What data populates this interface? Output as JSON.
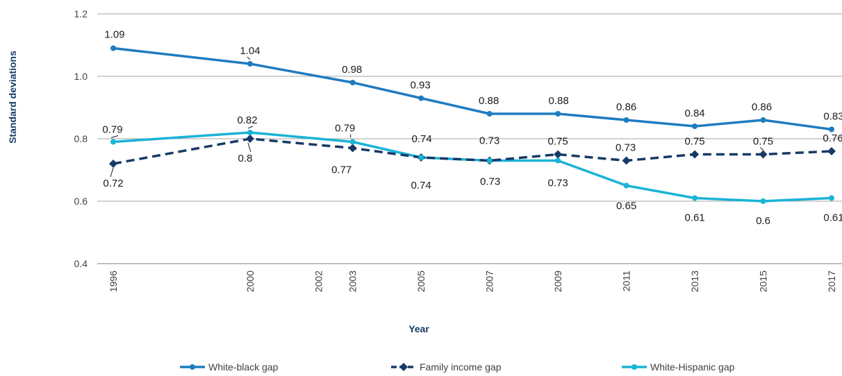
{
  "chart_data": {
    "type": "line",
    "xlabel": "Year",
    "ylabel": "Standard deviations",
    "ylim": [
      0.4,
      1.2
    ],
    "yticks": [
      "0.4",
      "0.6",
      "0.8",
      "1.0",
      "1.2"
    ],
    "grid": true,
    "legend_position": "bottom",
    "x": [
      "1996",
      "2000",
      "2002",
      "2003",
      "2005",
      "2007",
      "2009",
      "2011",
      "2013",
      "2015",
      "2017"
    ],
    "series": [
      {
        "name": "White-black gap",
        "color": "#1f7bc0",
        "marker": "circle",
        "dash": "solid",
        "points": [
          {
            "x": "1996",
            "y": 1.09,
            "label": "1.09"
          },
          {
            "x": "2000",
            "y": 1.04,
            "label": "1.04"
          },
          {
            "x": "2003",
            "y": 0.98,
            "label": "0.98"
          },
          {
            "x": "2005",
            "y": 0.93,
            "label": "0.93"
          },
          {
            "x": "2007",
            "y": 0.88,
            "label": "0.88"
          },
          {
            "x": "2009",
            "y": 0.88,
            "label": "0.88"
          },
          {
            "x": "2011",
            "y": 0.86,
            "label": "0.86"
          },
          {
            "x": "2013",
            "y": 0.84,
            "label": "0.84"
          },
          {
            "x": "2015",
            "y": 0.86,
            "label": "0.86"
          },
          {
            "x": "2017",
            "y": 0.83,
            "label": "0.83"
          }
        ]
      },
      {
        "name": "Family income gap",
        "color": "#173a66",
        "marker": "diamond",
        "dash": "dashed",
        "points": [
          {
            "x": "1996",
            "y": 0.72,
            "label": "0.72"
          },
          {
            "x": "2000",
            "y": 0.8,
            "label": "0.8"
          },
          {
            "x": "2003",
            "y": 0.77,
            "label": "0.77"
          },
          {
            "x": "2005",
            "y": 0.74,
            "label": "0.74"
          },
          {
            "x": "2007",
            "y": 0.73,
            "label": "0.73"
          },
          {
            "x": "2009",
            "y": 0.75,
            "label": "0.75"
          },
          {
            "x": "2011",
            "y": 0.73,
            "label": "0.73"
          },
          {
            "x": "2013",
            "y": 0.75,
            "label": "0.75"
          },
          {
            "x": "2015",
            "y": 0.75,
            "label": "0.75"
          },
          {
            "x": "2017",
            "y": 0.76,
            "label": "0.76"
          }
        ]
      },
      {
        "name": "White-Hispanic gap",
        "color": "#19b3d6",
        "marker": "circle",
        "dash": "solid",
        "points": [
          {
            "x": "1996",
            "y": 0.79,
            "label": "0.79"
          },
          {
            "x": "2000",
            "y": 0.82,
            "label": "0.82"
          },
          {
            "x": "2003",
            "y": 0.79,
            "label": "0.79"
          },
          {
            "x": "2005",
            "y": 0.74,
            "label": "0.74"
          },
          {
            "x": "2007",
            "y": 0.73,
            "label": "0.73"
          },
          {
            "x": "2009",
            "y": 0.73,
            "label": "0.73"
          },
          {
            "x": "2011",
            "y": 0.65,
            "label": "0.65"
          },
          {
            "x": "2013",
            "y": 0.61,
            "label": "0.61"
          },
          {
            "x": "2015",
            "y": 0.6,
            "label": "0.6"
          },
          {
            "x": "2017",
            "y": 0.61,
            "label": "0.61"
          }
        ]
      }
    ]
  },
  "colors": {
    "axis_title": "#173a66",
    "grid": "#a6a6a6",
    "label_text": "#1a1a1a"
  }
}
